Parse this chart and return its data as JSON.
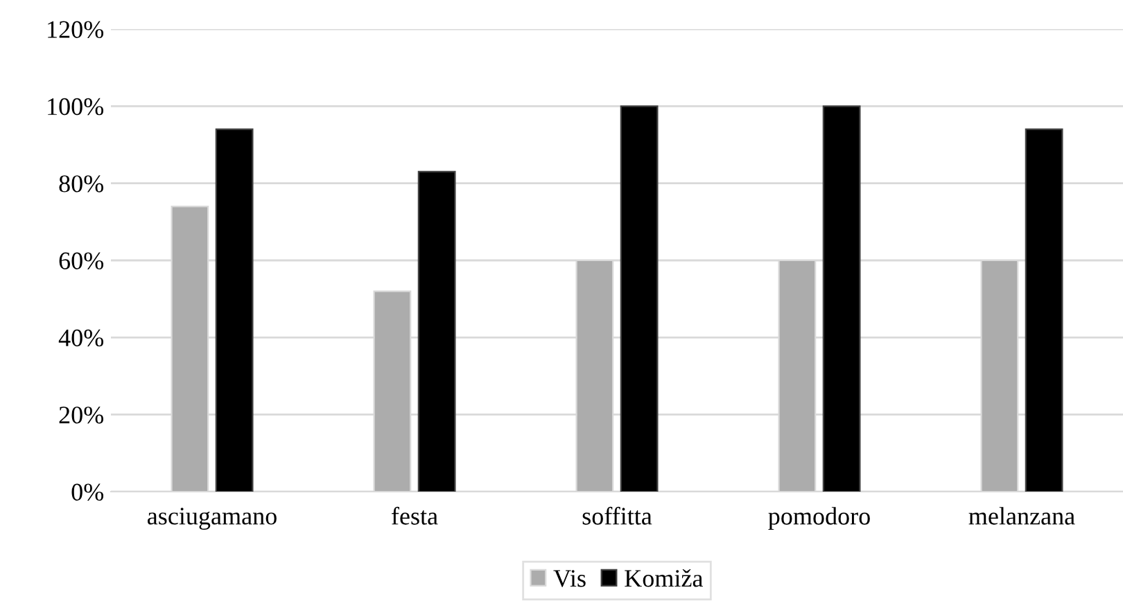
{
  "chart_data": {
    "type": "bar",
    "categories": [
      "asciugamano",
      "festa",
      "soffitta",
      "pomodoro",
      "melanzana"
    ],
    "series": [
      {
        "name": "Vis",
        "color": "#acacac",
        "values": [
          74,
          52,
          60,
          60,
          60
        ]
      },
      {
        "name": "Komiža",
        "color": "#000000",
        "values": [
          94,
          83,
          100,
          100,
          94
        ]
      }
    ],
    "ylim": [
      0,
      120
    ],
    "yticks": [
      {
        "value": 0,
        "label": "0%"
      },
      {
        "value": 20,
        "label": "20%"
      },
      {
        "value": 40,
        "label": "40%"
      },
      {
        "value": 60,
        "label": "60%"
      },
      {
        "value": 80,
        "label": "80%"
      },
      {
        "value": 100,
        "label": "100%"
      },
      {
        "value": 120,
        "label": "120%"
      }
    ],
    "grid": "y",
    "legend": "bottom"
  }
}
